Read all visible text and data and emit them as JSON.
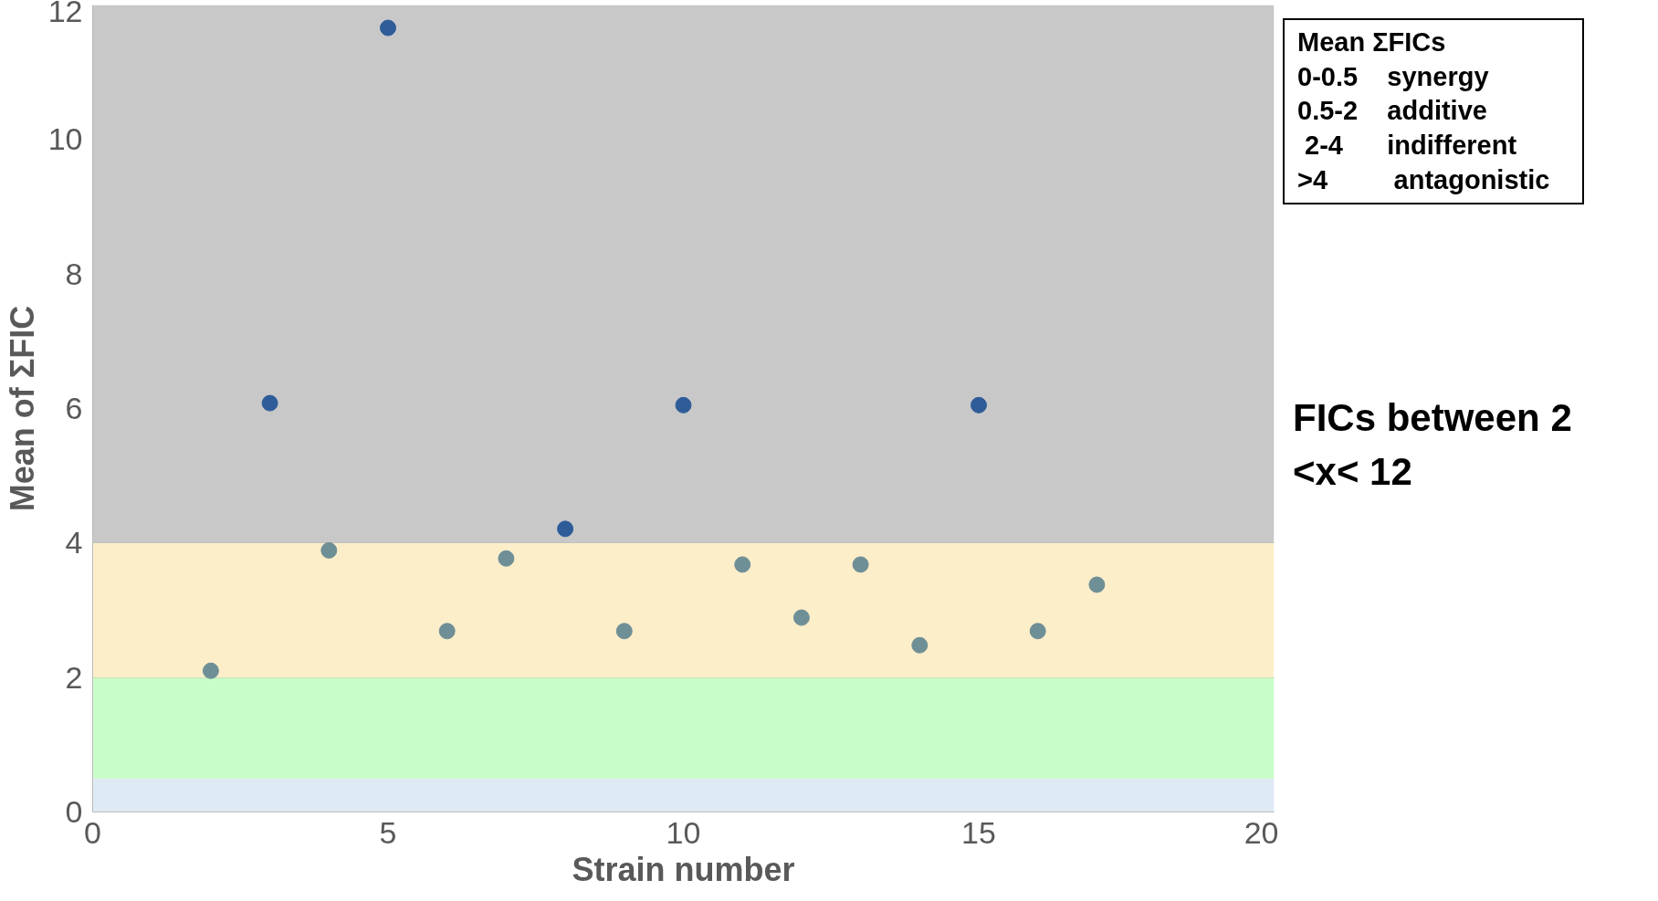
{
  "chart_data": {
    "type": "scatter",
    "xlabel": "Strain number",
    "ylabel": "Mean of ΣFIC",
    "x": [
      2,
      3,
      4,
      5,
      6,
      7,
      8,
      9,
      10,
      11,
      12,
      13,
      14,
      15,
      16,
      17
    ],
    "values": [
      2.1,
      6.08,
      3.89,
      11.66,
      2.69,
      3.77,
      4.21,
      2.69,
      6.05,
      3.68,
      2.89,
      3.68,
      2.48,
      6.05,
      2.69,
      3.38
    ],
    "colors": [
      "#6f8f96",
      "#2e5c99",
      "#6f8f96",
      "#2e5c99",
      "#6f8f96",
      "#6f8f96",
      "#2e5c99",
      "#6f8f96",
      "#2e5c99",
      "#6f8f96",
      "#6f8f96",
      "#6f8f96",
      "#6f8f96",
      "#2e5c99",
      "#6f8f96",
      "#6f8f96"
    ],
    "xlim": [
      0,
      20
    ],
    "ylim": [
      0,
      12
    ],
    "xticks": [
      0,
      5,
      10,
      15,
      20
    ],
    "yticks": [
      0,
      2,
      4,
      6,
      8,
      10,
      12
    ],
    "grid": "y",
    "marker": "circle",
    "bands": [
      {
        "axis": "y",
        "from": 0,
        "to": 0.5,
        "color": "#deeaf4"
      },
      {
        "axis": "y",
        "from": 0.5,
        "to": 2,
        "color": "#c8fcc8"
      },
      {
        "axis": "y",
        "from": 2,
        "to": 4,
        "color": "#fdeeca"
      },
      {
        "axis": "y",
        "from": 4,
        "to": 12,
        "color": "#c8c8c8"
      }
    ],
    "annotations": [
      "Mean ΣFICs",
      "0-0.5    synergy",
      "0.5-2    additive",
      " 2-4      indifferent",
      ">4         antagonistic",
      "FICs between 2 <x< 12"
    ]
  }
}
